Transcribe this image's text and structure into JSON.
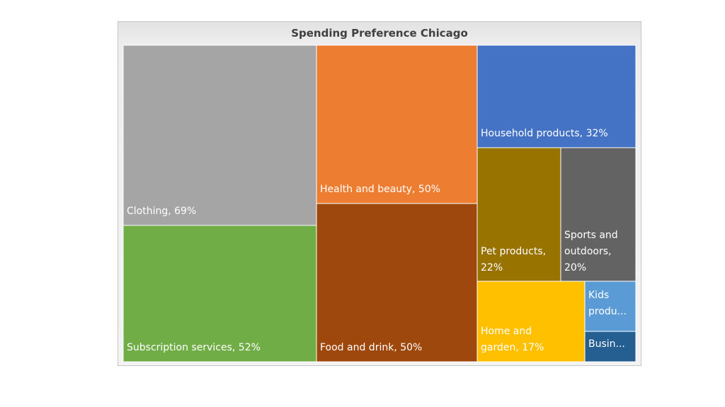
{
  "chart_data": {
    "type": "treemap",
    "title": "Spending Preference Chicago",
    "items": [
      {
        "label": "Clothing, 69%",
        "name": "Clothing",
        "value": 69,
        "color": "#a5a5a5"
      },
      {
        "label": "Subscription services, 52%",
        "name": "Subscription services",
        "value": 52,
        "color": "#70ad47"
      },
      {
        "label": "Health and beauty, 50%",
        "name": "Health and beauty",
        "value": 50,
        "color": "#ed7d31"
      },
      {
        "label": "Food and drink, 50%",
        "name": "Food and drink",
        "value": 50,
        "color": "#9e480e"
      },
      {
        "label": "Household products, 32%",
        "name": "Household products",
        "value": 32,
        "color": "#4472c4"
      },
      {
        "label": "Pet products, 22%",
        "name": "Pet products",
        "value": 22,
        "color": "#997300"
      },
      {
        "label": "Sports and outdoors, 20%",
        "name": "Sports and outdoors",
        "value": 20,
        "color": "#636363"
      },
      {
        "label": "Home and garden, 17%",
        "name": "Home and garden",
        "value": 17,
        "color": "#ffc000"
      },
      {
        "label": "Kids produ...",
        "name": "Kids products",
        "color": "#5b9bd5"
      },
      {
        "label": "Busin...",
        "name": "Business",
        "color": "#255e91"
      }
    ]
  }
}
